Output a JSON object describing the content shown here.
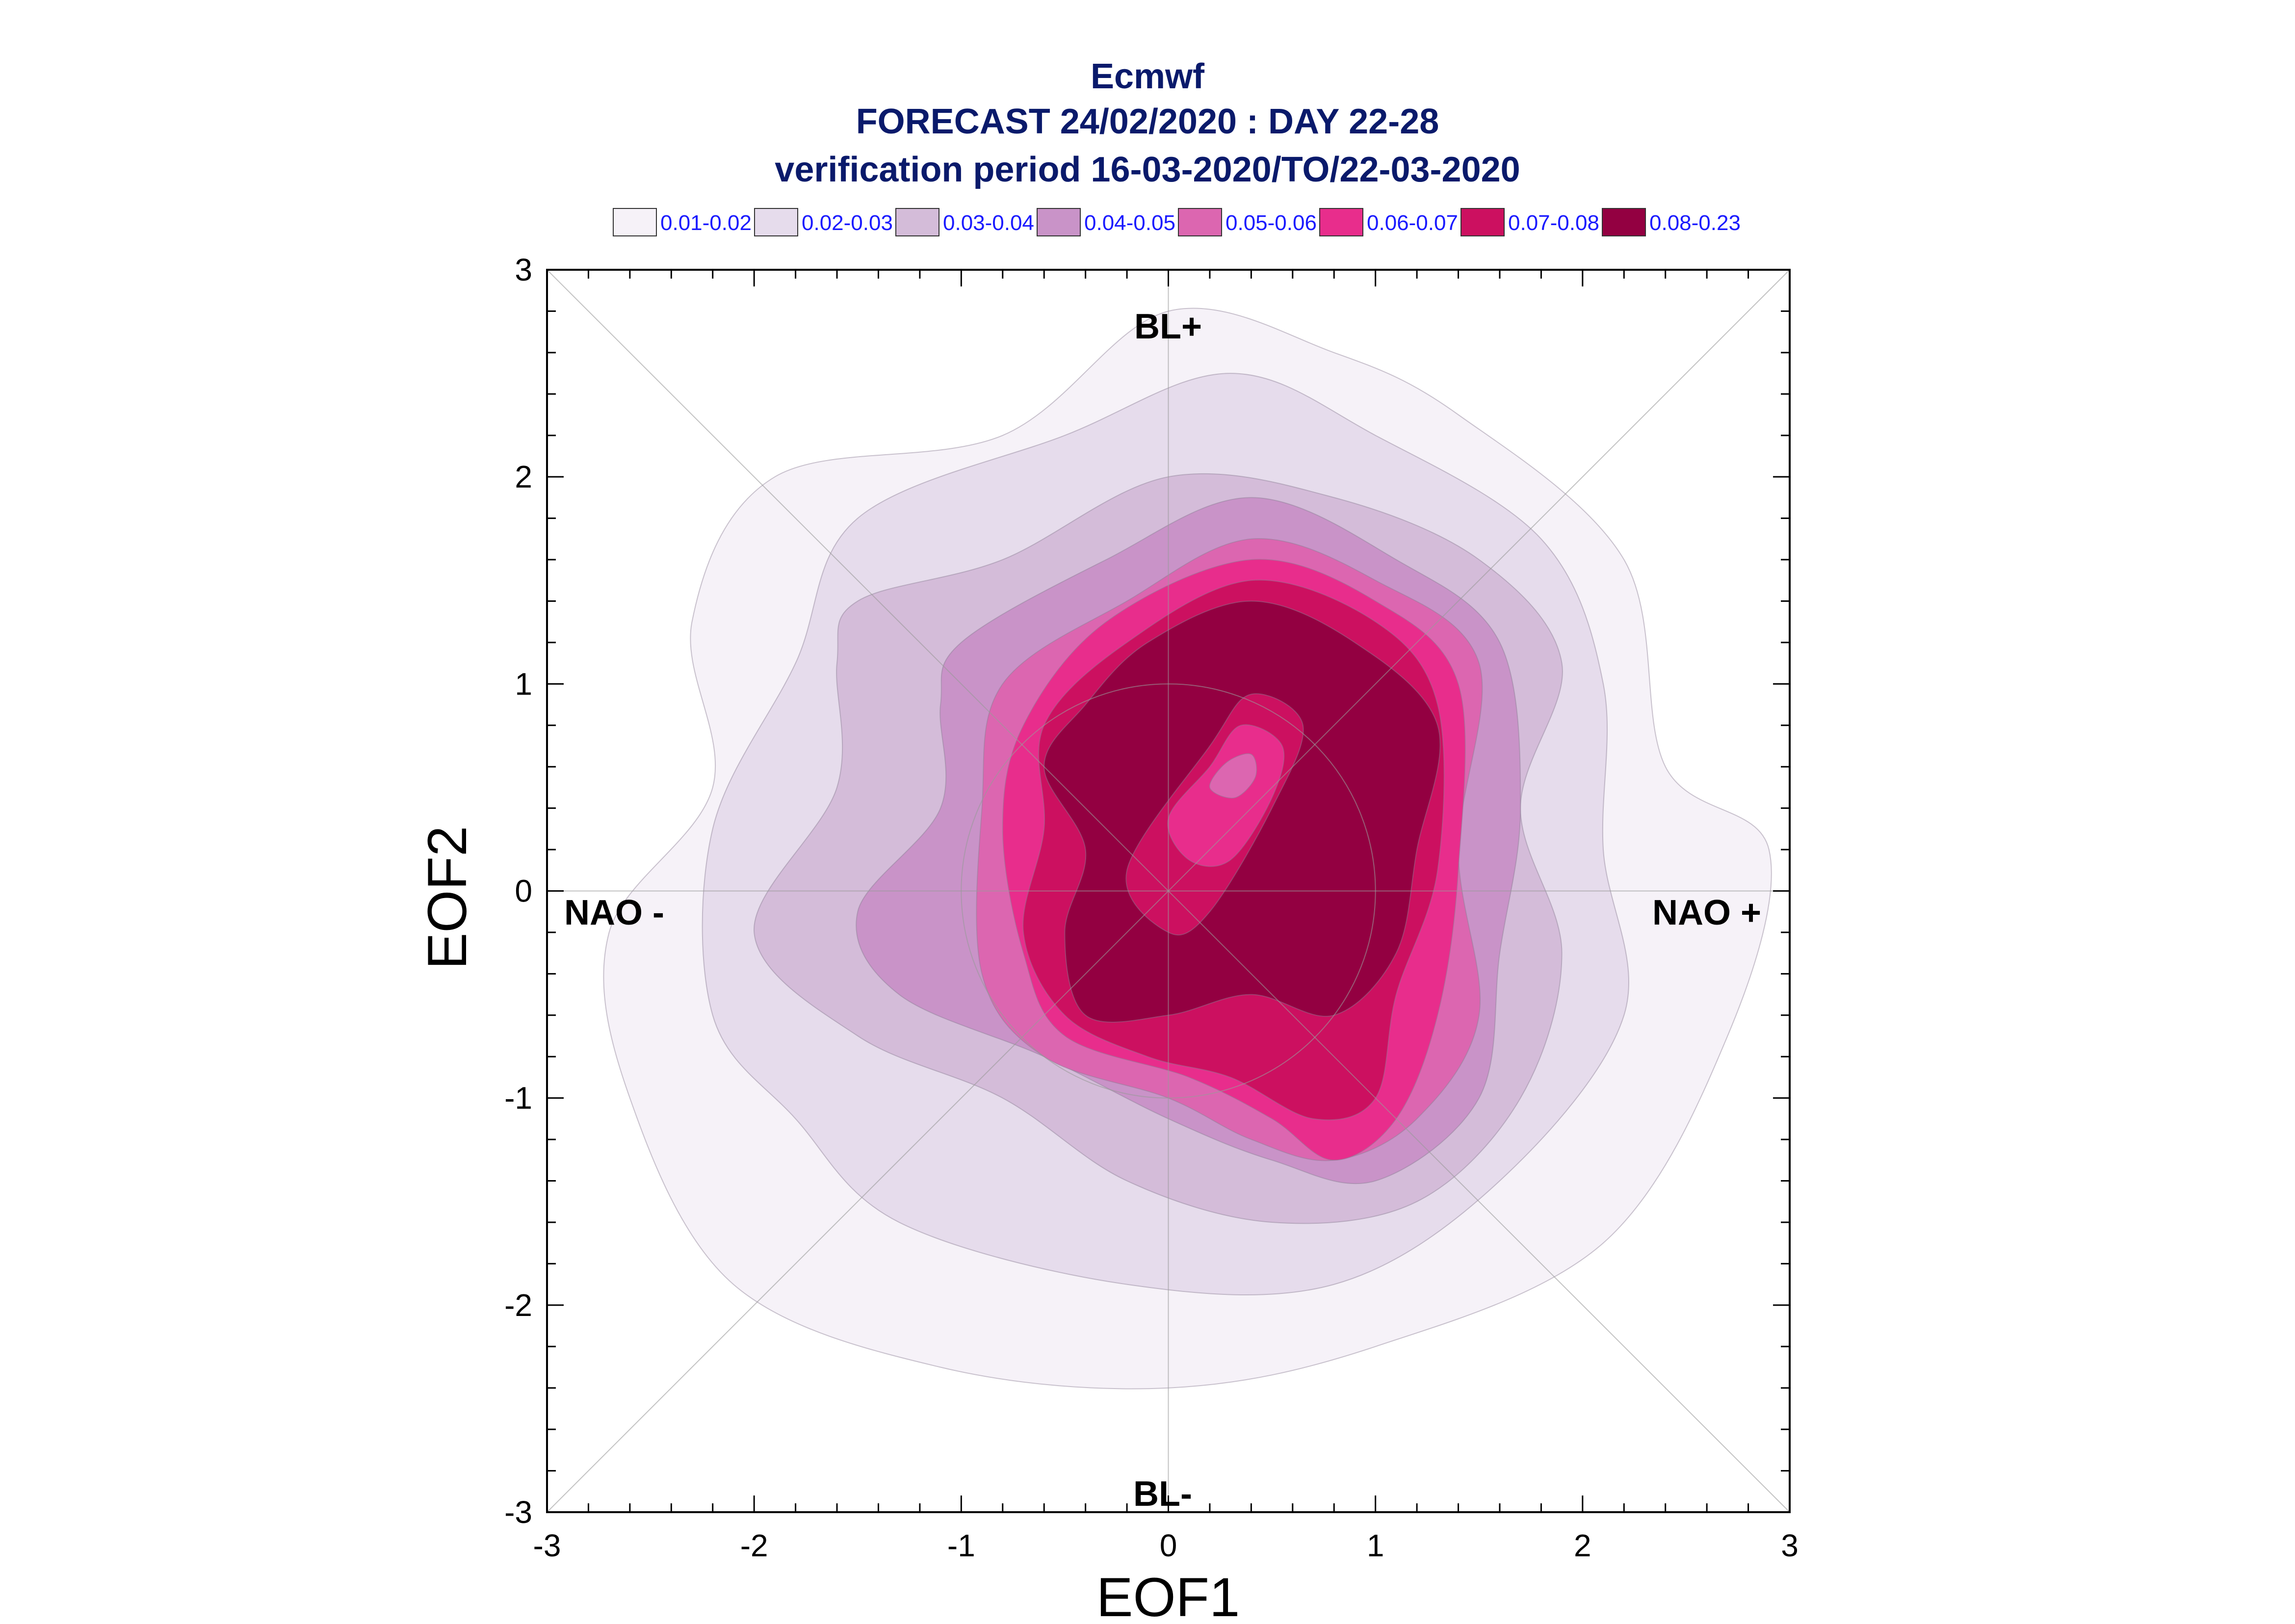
{
  "chart_data": {
    "type": "contour",
    "title_lines": [
      "Ecmwf",
      "FORECAST 24/02/2020 : DAY 22-28",
      "verification period 16-03-2020/TO/22-03-2020"
    ],
    "xlabel": "EOF1",
    "ylabel": "EOF2",
    "xlim": [
      -3,
      3
    ],
    "ylim": [
      -3,
      3
    ],
    "xticks": [
      -3,
      -2,
      -1,
      0,
      1,
      2,
      3
    ],
    "yticks": [
      -3,
      -2,
      -1,
      0,
      1,
      2,
      3
    ],
    "regime_labels": {
      "top": "BL+",
      "bottom": "BL-",
      "left": "NAO -",
      "right": "NAO +"
    },
    "legend_position": "top",
    "levels": [
      {
        "label": "0.01-0.02",
        "color": "#f6f2f8"
      },
      {
        "label": "0.02-0.03",
        "color": "#e6dcec"
      },
      {
        "label": "0.03-0.04",
        "color": "#d4bcd9"
      },
      {
        "label": "0.04-0.05",
        "color": "#c993c8"
      },
      {
        "label": "0.05-0.06",
        "color": "#dc66b0"
      },
      {
        "label": "0.06-0.07",
        "color": "#e82d8c"
      },
      {
        "label": "0.07-0.08",
        "color": "#cc1060"
      },
      {
        "label": "0.08-0.23",
        "color": "#930041"
      }
    ],
    "contours": [
      {
        "level": 0,
        "points": [
          [
            -0.8,
            2.2
          ],
          [
            0,
            2.8
          ],
          [
            0.8,
            2.6
          ],
          [
            1.4,
            2.3
          ],
          [
            2.2,
            1.6
          ],
          [
            2.4,
            0.6
          ],
          [
            2.9,
            0.2
          ],
          [
            2.7,
            -0.7
          ],
          [
            2.1,
            -1.7
          ],
          [
            1.0,
            -2.2
          ],
          [
            0,
            -2.4
          ],
          [
            -1.1,
            -2.3
          ],
          [
            -2.1,
            -1.9
          ],
          [
            -2.6,
            -1.0
          ],
          [
            -2.7,
            -0.2
          ],
          [
            -2.2,
            0.5
          ],
          [
            -2.3,
            1.3
          ],
          [
            -1.9,
            2.0
          ]
        ]
      },
      {
        "level": 1,
        "points": [
          [
            -1.5,
            1.8
          ],
          [
            -0.5,
            2.2
          ],
          [
            0.3,
            2.5
          ],
          [
            1.0,
            2.2
          ],
          [
            1.8,
            1.7
          ],
          [
            2.1,
            1.0
          ],
          [
            2.1,
            0.2
          ],
          [
            2.2,
            -0.6
          ],
          [
            1.6,
            -1.4
          ],
          [
            0.8,
            -1.9
          ],
          [
            -0.2,
            -1.9
          ],
          [
            -1.3,
            -1.6
          ],
          [
            -1.8,
            -1.1
          ],
          [
            -2.2,
            -0.6
          ],
          [
            -2.2,
            0.3
          ],
          [
            -1.8,
            1.1
          ]
        ]
      },
      {
        "level": 2,
        "points": [
          [
            -1.5,
            1.4
          ],
          [
            -0.8,
            1.6
          ],
          [
            0,
            2.0
          ],
          [
            0.8,
            1.9
          ],
          [
            1.5,
            1.6
          ],
          [
            1.9,
            1.1
          ],
          [
            1.7,
            0.4
          ],
          [
            1.9,
            -0.3
          ],
          [
            1.7,
            -1.0
          ],
          [
            1.2,
            -1.5
          ],
          [
            0.5,
            -1.6
          ],
          [
            -0.2,
            -1.4
          ],
          [
            -0.8,
            -1.0
          ],
          [
            -1.5,
            -0.7
          ],
          [
            -2.0,
            -0.2
          ],
          [
            -1.6,
            0.5
          ],
          [
            -1.6,
            1.1
          ]
        ]
      },
      {
        "level": 3,
        "points": [
          [
            -1.0,
            1.2
          ],
          [
            -0.3,
            1.6
          ],
          [
            0.4,
            1.9
          ],
          [
            1.1,
            1.6
          ],
          [
            1.6,
            1.2
          ],
          [
            1.7,
            0.4
          ],
          [
            1.6,
            -0.3
          ],
          [
            1.5,
            -1.0
          ],
          [
            1.0,
            -1.4
          ],
          [
            0.5,
            -1.3
          ],
          [
            0,
            -1.1
          ],
          [
            -0.6,
            -0.8
          ],
          [
            -1.3,
            -0.5
          ],
          [
            -1.5,
            -0.1
          ],
          [
            -1.1,
            0.4
          ],
          [
            -1.1,
            0.9
          ]
        ]
      },
      {
        "level": 4,
        "points": [
          [
            -0.8,
            1.0
          ],
          [
            -0.2,
            1.4
          ],
          [
            0.4,
            1.7
          ],
          [
            1.0,
            1.5
          ],
          [
            1.5,
            1.1
          ],
          [
            1.4,
            0.2
          ],
          [
            1.5,
            -0.6
          ],
          [
            1.2,
            -1.1
          ],
          [
            0.8,
            -1.3
          ],
          [
            0.4,
            -1.2
          ],
          [
            0,
            -1.0
          ],
          [
            -0.6,
            -0.8
          ],
          [
            -0.9,
            -0.4
          ],
          [
            -0.9,
            0.4
          ]
        ]
      },
      {
        "level": 5,
        "points": [
          [
            -0.7,
            0.8
          ],
          [
            -0.3,
            1.3
          ],
          [
            0.4,
            1.6
          ],
          [
            1.0,
            1.4
          ],
          [
            1.4,
            1.0
          ],
          [
            1.4,
            0.1
          ],
          [
            1.3,
            -0.6
          ],
          [
            1.1,
            -1.1
          ],
          [
            0.8,
            -1.3
          ],
          [
            0.5,
            -1.1
          ],
          [
            0.1,
            -0.9
          ],
          [
            -0.5,
            -0.7
          ],
          [
            -0.7,
            -0.3
          ],
          [
            -0.8,
            0.3
          ]
        ]
      },
      {
        "level": 6,
        "points": [
          [
            -0.6,
            0.8
          ],
          [
            -0.2,
            1.2
          ],
          [
            0.4,
            1.5
          ],
          [
            1.0,
            1.3
          ],
          [
            1.3,
            0.9
          ],
          [
            1.3,
            0.1
          ],
          [
            1.1,
            -0.5
          ],
          [
            1.0,
            -1.0
          ],
          [
            0.7,
            -1.1
          ],
          [
            0.3,
            -0.9
          ],
          [
            -0.1,
            -0.8
          ],
          [
            -0.5,
            -0.6
          ],
          [
            -0.7,
            -0.2
          ],
          [
            -0.6,
            0.3
          ]
        ]
      },
      {
        "level": 7,
        "points": [
          [
            -0.4,
            0.9
          ],
          [
            -0.1,
            1.2
          ],
          [
            0.4,
            1.4
          ],
          [
            0.9,
            1.2
          ],
          [
            1.3,
            0.8
          ],
          [
            1.2,
            0.2
          ],
          [
            1.1,
            -0.3
          ],
          [
            0.8,
            -0.6
          ],
          [
            0.4,
            -0.5
          ],
          [
            0,
            -0.6
          ],
          [
            -0.4,
            -0.6
          ],
          [
            -0.5,
            -0.2
          ],
          [
            -0.4,
            0.2
          ],
          [
            -0.6,
            0.6
          ]
        ]
      },
      {
        "level": 6,
        "points": [
          [
            -0.2,
            0.1
          ],
          [
            0.2,
            0.7
          ],
          [
            0.4,
            0.95
          ],
          [
            0.65,
            0.8
          ],
          [
            0.5,
            0.4
          ],
          [
            0.2,
            -0.1
          ],
          [
            0,
            -0.2
          ]
        ]
      },
      {
        "level": 5,
        "points": [
          [
            0,
            0.35
          ],
          [
            0.2,
            0.6
          ],
          [
            0.35,
            0.8
          ],
          [
            0.55,
            0.7
          ],
          [
            0.5,
            0.45
          ],
          [
            0.3,
            0.15
          ],
          [
            0.1,
            0.15
          ]
        ]
      },
      {
        "level": 4,
        "points": [
          [
            0.2,
            0.5
          ],
          [
            0.28,
            0.62
          ],
          [
            0.4,
            0.66
          ],
          [
            0.42,
            0.55
          ],
          [
            0.32,
            0.45
          ]
        ]
      }
    ]
  }
}
